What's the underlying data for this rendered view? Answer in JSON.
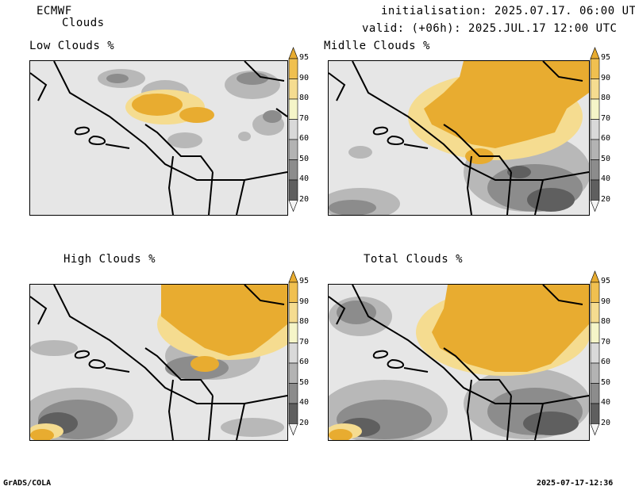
{
  "header": {
    "model": "ECMWF",
    "field": "Clouds",
    "initialisation": "initialisation: 2025.07.17. 06:00 UTC",
    "valid": "valid: (+06h): 2025.JUL.17 12:00 UTC"
  },
  "panels": [
    {
      "title": "Low Clouds %"
    },
    {
      "title": "Midlle Clouds %"
    },
    {
      "title": "High Clouds %"
    },
    {
      "title": "Total Clouds %"
    }
  ],
  "colorbar": {
    "levels": [
      "95",
      "90",
      "80",
      "70",
      "60",
      "50",
      "40",
      "20"
    ],
    "colors": [
      "#e8ac30",
      "#f0c050",
      "#f5dc90",
      "#f5f5c8",
      "#d9d9d9",
      "#b3b3b3",
      "#8c8c8c",
      "#5f5f5f",
      "#f4f4f4"
    ]
  },
  "footer": {
    "left": "GrADS/COLA",
    "right": "2025-07-17-12:36"
  },
  "colors": {
    "background": "#e6e6e6",
    "high": "#e8ac30",
    "dark": "#5f5f5f",
    "mid": "#9a9a9a"
  }
}
